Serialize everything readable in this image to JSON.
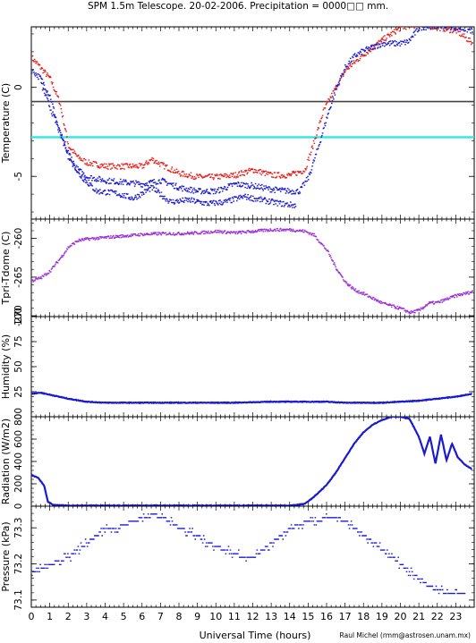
{
  "title": "SPM 1.5m Telescope. 20-02-2006. Precipitation = 0000□□ mm.",
  "credit": "Raul Michel (rmm@astrosen.unam.mx)",
  "xlabel": "Universal Time (hours)",
  "xticks": [
    "0",
    "1",
    "2",
    "3",
    "4",
    "5",
    "6",
    "7",
    "8",
    "9",
    "10",
    "11",
    "12",
    "13",
    "14",
    "15",
    "16",
    "17",
    "18",
    "19",
    "20",
    "21",
    "22",
    "23"
  ],
  "colors": {
    "red": "#e8201c",
    "blue": "#1a1ad0",
    "purple": "#9a2fd6",
    "cyan": "#2ee6e6",
    "gray": "#444444"
  },
  "chart_data": [
    {
      "type": "scatter",
      "ylabel": "Temperature (C)",
      "ylim": [
        -7.4,
        3.4
      ],
      "yticks": [
        {
          "value": 0,
          "label": "0"
        },
        {
          "value": -5,
          "label": "-5"
        }
      ],
      "hlines": [
        {
          "name": "black-line",
          "value": -0.8,
          "color": "#444444"
        },
        {
          "name": "cyan-line",
          "value": -2.8,
          "color": "#2ee6e6"
        }
      ],
      "series": [
        {
          "color": "#e8201c",
          "x": [
            0,
            0.5,
            1,
            1.5,
            2,
            2.5,
            3,
            4,
            5,
            6,
            6.5,
            7,
            8,
            9,
            10,
            11,
            12,
            13,
            14,
            14.8,
            15.3,
            15.8,
            16.3,
            17,
            18,
            19,
            20,
            21,
            22,
            23,
            23.9
          ],
          "y": [
            1.7,
            1.1,
            0.5,
            -0.8,
            -3.3,
            -3.9,
            -4.2,
            -4.4,
            -4.4,
            -4.4,
            -4.0,
            -4.3,
            -4.8,
            -5.0,
            -5.0,
            -4.9,
            -4.6,
            -4.9,
            -4.9,
            -4.6,
            -3.0,
            -1.3,
            -0.3,
            1.0,
            1.9,
            2.7,
            3.4,
            3.6,
            3.4,
            3.2,
            2.5
          ]
        },
        {
          "color": "#1a1ad0",
          "x": [
            0,
            0.5,
            1,
            1.5,
            2,
            2.5,
            3,
            4,
            5,
            6,
            7,
            8,
            9,
            10,
            11,
            12,
            13,
            14,
            14.5,
            15,
            15.5,
            16,
            16.5,
            17,
            17.5,
            18,
            19,
            20,
            20.4,
            21,
            22,
            23,
            23.9
          ],
          "y": [
            1.0,
            0.5,
            -0.5,
            -2.5,
            -4.0,
            -4.6,
            -5.0,
            -5.2,
            -5.3,
            -5.4,
            -5.2,
            -5.6,
            -5.8,
            -5.8,
            -5.4,
            -5.5,
            -5.7,
            -5.8,
            -5.8,
            -5.0,
            -3.4,
            -1.6,
            0.0,
            1.2,
            1.8,
            2.1,
            2.5,
            2.5,
            2.6,
            3.4,
            3.5,
            3.4,
            3.2
          ]
        },
        {
          "color": "#1a1ad0",
          "x": [
            0.5,
            1.5,
            2.5,
            3.5,
            4.5,
            5.5,
            6.5,
            7.5,
            8.5,
            9.5,
            10.5,
            11.5,
            12.5,
            13.5,
            14.3
          ],
          "y": [
            0.2,
            -2.5,
            -4.8,
            -5.8,
            -5.9,
            -6.2,
            -5.6,
            -6.4,
            -6.3,
            -6.5,
            -6.4,
            -6.1,
            -6.3,
            -6.5,
            -6.6
          ]
        }
      ]
    },
    {
      "type": "scatter",
      "ylabel": "Tpri-Tdome (C)",
      "ylim": [
        -270.1,
        -257.5
      ],
      "yticks": [
        {
          "value": -260,
          "label": "-260"
        },
        {
          "value": -265,
          "label": "-265"
        },
        {
          "value": -270,
          "label": "-270"
        }
      ],
      "series": [
        {
          "color": "#9a2fd6",
          "x": [
            0,
            0.5,
            1,
            1.5,
            2,
            2.5,
            3,
            4,
            5,
            6,
            7,
            8,
            9,
            10,
            11,
            12,
            13,
            14,
            14.8,
            15.3,
            16,
            16.5,
            17,
            17.5,
            18,
            19,
            20,
            20.5,
            21,
            21.5,
            22,
            23,
            23.9
          ],
          "y": [
            -265.4,
            -265.0,
            -264.1,
            -262.6,
            -261.0,
            -260.2,
            -260.0,
            -259.8,
            -259.6,
            -259.4,
            -259.3,
            -259.3,
            -259.2,
            -259.0,
            -259.2,
            -259.0,
            -258.8,
            -258.8,
            -259.0,
            -259.5,
            -261.5,
            -263.8,
            -265.6,
            -266.6,
            -267.1,
            -268.3,
            -269.0,
            -269.5,
            -269.2,
            -268.3,
            -268.2,
            -267.3,
            -266.8
          ]
        }
      ]
    },
    {
      "type": "line",
      "ylabel": "Humidity (%)",
      "ylim": [
        0,
        100
      ],
      "yticks": [
        {
          "value": 0,
          "label": "0"
        },
        {
          "value": 25,
          "label": "25"
        },
        {
          "value": 50,
          "label": "50"
        },
        {
          "value": 75,
          "label": "75"
        },
        {
          "value": 100,
          "label": "100"
        }
      ],
      "series": [
        {
          "color": "#1a1ad0",
          "x": [
            0,
            0.5,
            1,
            1.5,
            2,
            3,
            4,
            5,
            6,
            7,
            8,
            9,
            10,
            11,
            12,
            13,
            14,
            15,
            16,
            17,
            18,
            19,
            20,
            21,
            22,
            23,
            23.9
          ],
          "y": [
            23,
            24,
            22,
            20,
            18,
            15,
            14,
            14,
            14,
            14,
            14,
            14,
            14,
            14,
            14.5,
            15,
            15,
            15,
            15,
            14,
            14,
            14,
            15,
            16,
            18,
            20,
            23
          ]
        }
      ]
    },
    {
      "type": "line",
      "ylabel": "Radiation (W/m2)",
      "ylim": [
        0,
        800
      ],
      "yticks": [
        {
          "value": 0,
          "label": "0"
        },
        {
          "value": 200,
          "label": "200"
        },
        {
          "value": 400,
          "label": "400"
        },
        {
          "value": 600,
          "label": "600"
        },
        {
          "value": 800,
          "label": "800"
        }
      ],
      "series": [
        {
          "color": "#1a1ad0",
          "x": [
            0,
            0.4,
            0.7,
            0.9,
            1.2,
            2,
            4,
            6,
            8,
            10,
            12,
            14,
            14.8,
            15.3,
            16,
            16.5,
            17,
            17.5,
            18,
            18.5,
            19,
            19.5,
            20,
            20.5,
            21,
            21.3,
            21.6,
            21.9,
            22.2,
            22.5,
            22.8,
            23.1,
            23.5,
            23.9
          ],
          "y": [
            280,
            250,
            180,
            40,
            10,
            5,
            5,
            5,
            5,
            5,
            5,
            5,
            20,
            80,
            190,
            300,
            430,
            560,
            660,
            730,
            770,
            800,
            800,
            780,
            620,
            470,
            620,
            380,
            640,
            410,
            560,
            440,
            370,
            330
          ]
        }
      ]
    },
    {
      "type": "scatter",
      "ylabel": "Pressure (kPa)",
      "ylim": [
        73.08,
        73.36
      ],
      "yticks": [
        {
          "value": 73.1,
          "label": "73.1"
        },
        {
          "value": 73.2,
          "label": "73.2"
        },
        {
          "value": 73.3,
          "label": "73.3"
        }
      ],
      "series": [
        {
          "color": "#1a1ad0",
          "x": [
            0,
            0.5,
            1,
            1.5,
            2,
            2.5,
            3,
            3.5,
            4,
            4.5,
            5,
            5.5,
            6,
            6.5,
            7,
            7.5,
            8,
            8.5,
            9,
            9.5,
            10,
            10.5,
            11,
            11.5,
            12,
            12.5,
            13,
            13.5,
            14,
            14.5,
            15,
            15.5,
            16,
            16.5,
            17,
            17.5,
            18,
            18.5,
            19,
            19.5,
            20,
            20.5,
            21,
            21.5,
            22,
            22.5,
            23,
            23.5
          ],
          "y": [
            73.18,
            73.19,
            73.2,
            73.21,
            73.22,
            73.24,
            73.26,
            73.28,
            73.3,
            73.3,
            73.31,
            73.32,
            73.33,
            73.34,
            73.33,
            73.32,
            73.3,
            73.29,
            73.28,
            73.26,
            73.25,
            73.24,
            73.23,
            73.22,
            73.22,
            73.24,
            73.26,
            73.28,
            73.3,
            73.31,
            73.32,
            73.32,
            73.33,
            73.33,
            73.32,
            73.3,
            73.28,
            73.26,
            73.24,
            73.22,
            73.2,
            73.18,
            73.16,
            73.14,
            73.13,
            73.12,
            73.12,
            73.12
          ]
        }
      ]
    }
  ]
}
